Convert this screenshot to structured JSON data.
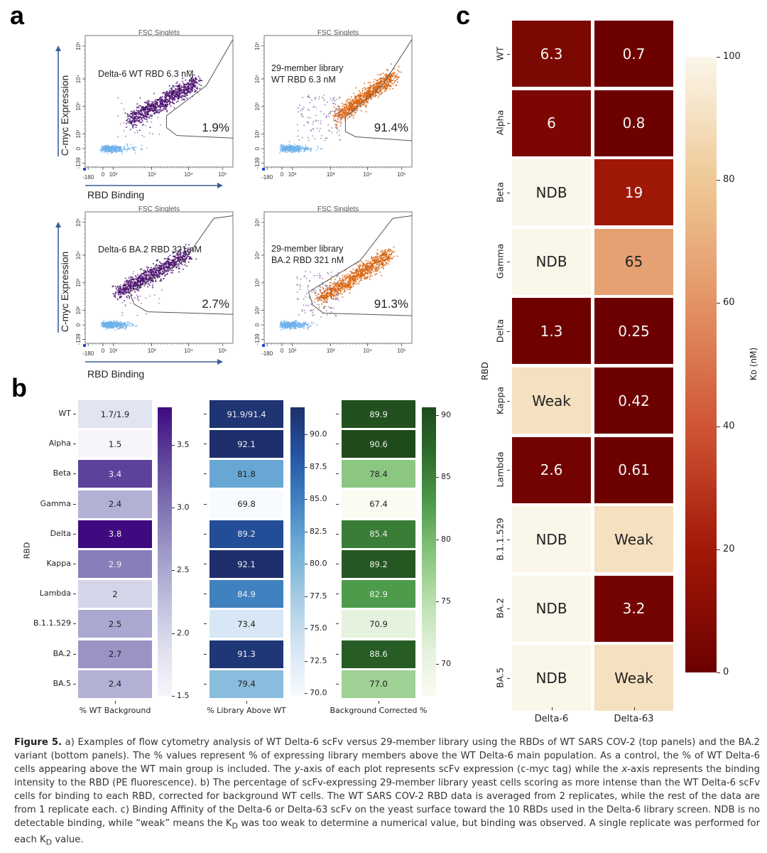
{
  "panels": {
    "a": "a",
    "b": "b",
    "c": "c"
  },
  "panel_a": {
    "plots": [
      {
        "title": "FSC Singlets",
        "label_lines": [
          "Delta-6 WT RBD 6.3 nM"
        ],
        "percent": "1.9%",
        "population": "wt"
      },
      {
        "title": "FSC Singlets",
        "label_lines": [
          "29-member library",
          "WT RBD 6.3 nM"
        ],
        "percent": "91.4%",
        "population": "library"
      },
      {
        "title": "FSC Singlets",
        "label_lines": [
          "Delta-6 BA.2 RBD 321 nM"
        ],
        "percent": "2.7%",
        "population": "wt"
      },
      {
        "title": "FSC Singlets",
        "label_lines": [
          "29-member library",
          "BA.2 RBD 321 nM"
        ],
        "percent": "91.3%",
        "population": "library"
      }
    ],
    "y_axis_label": "C-myc Expression",
    "x_axis_label": "RBD Binding",
    "y_ticks": [
      "-139",
      "0",
      "10²",
      "10³",
      "10⁴",
      "10⁵"
    ],
    "x_ticks": [
      "-180",
      "0",
      "10²",
      "10³",
      "10⁴",
      "10⁵"
    ],
    "colors": {
      "wt_main": "#4b0f6e",
      "library_main": "#d9640f",
      "negative": "#6fb1ea",
      "axis_arrow": "#3a5f9a",
      "gate": "#555555"
    }
  },
  "chart_data": [
    {
      "type": "heatmap",
      "title": "% WT Background",
      "ylabel": "RBD",
      "categories": [
        "WT",
        "Alpha",
        "Beta",
        "Gamma",
        "Delta",
        "Kappa",
        "Lambda",
        "B.1.1.529",
        "BA.2",
        "BA.5"
      ],
      "values": [
        1.8,
        1.5,
        3.4,
        2.4,
        3.8,
        2.9,
        2.0,
        2.5,
        2.7,
        2.4
      ],
      "labels": [
        "1.7/1.9",
        "1.5",
        "3.4",
        "2.4",
        "3.8",
        "2.9",
        "2",
        "2.5",
        "2.7",
        "2.4"
      ],
      "colorbar": {
        "range": [
          1.5,
          3.8
        ],
        "ticks": [
          1.5,
          2.0,
          2.5,
          3.0,
          3.5
        ],
        "tick_labels": [
          "1.5",
          "2.0",
          "2.5",
          "3.0",
          "3.5"
        ],
        "cmap": "Purples"
      }
    },
    {
      "type": "heatmap",
      "title": "% Library Above WT",
      "categories": [
        "WT",
        "Alpha",
        "Beta",
        "Gamma",
        "Delta",
        "Kappa",
        "Lambda",
        "B.1.1.529",
        "BA.2",
        "BA.5"
      ],
      "values": [
        91.65,
        92.1,
        81.8,
        69.8,
        89.2,
        92.1,
        84.9,
        73.4,
        91.3,
        79.4
      ],
      "labels": [
        "91.9/91.4",
        "92.1",
        "81.8",
        "69.8",
        "89.2",
        "92.1",
        "84.9",
        "73.4",
        "91.3",
        "79.4"
      ],
      "colorbar": {
        "range": [
          69.8,
          92.1
        ],
        "ticks": [
          70.0,
          72.5,
          75.0,
          77.5,
          80.0,
          82.5,
          85.0,
          87.5,
          90.0
        ],
        "tick_labels": [
          "70.0",
          "72.5",
          "75.0",
          "77.5",
          "80.0",
          "82.5",
          "85.0",
          "87.5",
          "90.0"
        ],
        "cmap": "Blues"
      }
    },
    {
      "type": "heatmap",
      "title": "Background Corrected %",
      "categories": [
        "WT",
        "Alpha",
        "Beta",
        "Gamma",
        "Delta",
        "Kappa",
        "Lambda",
        "B.1.1.529",
        "BA.2",
        "BA.5"
      ],
      "values": [
        89.9,
        90.6,
        78.4,
        67.4,
        85.4,
        89.2,
        82.9,
        70.9,
        88.6,
        77.0
      ],
      "labels": [
        "89.9",
        "90.6",
        "78.4",
        "67.4",
        "85.4",
        "89.2",
        "82.9",
        "70.9",
        "88.6",
        "77.0"
      ],
      "colorbar": {
        "range": [
          67.4,
          90.6
        ],
        "ticks": [
          70,
          75,
          80,
          85,
          90
        ],
        "tick_labels": [
          "70",
          "75",
          "80",
          "85",
          "90"
        ],
        "cmap": "Greens"
      }
    },
    {
      "type": "heatmap",
      "title": "",
      "ylabel": "RBD",
      "colorbar_label": "Kᴅ (nM)",
      "x_categories": [
        "Delta-6",
        "Delta-63"
      ],
      "categories": [
        "WT",
        "Alpha",
        "Beta",
        "Gamma",
        "Delta",
        "Kappa",
        "Lambda",
        "B.1.1.529",
        "BA.2",
        "BA.5"
      ],
      "series": [
        {
          "name": "Delta-6",
          "values": [
            6.3,
            6,
            100,
            100,
            1.3,
            90,
            2.6,
            100,
            100,
            100
          ],
          "labels": [
            "6.3",
            "6",
            "NDB",
            "NDB",
            "1.3",
            "Weak",
            "2.6",
            "NDB",
            "NDB",
            "NDB"
          ]
        },
        {
          "name": "Delta-63",
          "values": [
            0.7,
            0.8,
            19,
            65,
            0.25,
            0.42,
            0.61,
            90,
            3.2,
            90
          ],
          "labels": [
            "0.7",
            "0.8",
            "19",
            "65",
            "0.25",
            "0.42",
            "0.61",
            "Weak",
            "3.2",
            "Weak"
          ]
        }
      ],
      "colorbar": {
        "range": [
          0,
          100
        ],
        "ticks": [
          0,
          20,
          40,
          60,
          80,
          100
        ],
        "tick_labels": [
          "0",
          "20",
          "40",
          "60",
          "80",
          "100"
        ],
        "cmap": "OrRd_r"
      }
    }
  ],
  "caption": {
    "figure_label": "Figure 5.",
    "text_a": " a) Examples of flow cytometry analysis of WT Delta-6 scFv versus 29-member library using the RBDs of WT SARS COV-2 (top panels) and the BA.2 variant (bottom panels). The % values represent % of expressing library members above the WT Delta-6 main population. As a control, the % of WT Delta-6 cells appearing above the WT main group is included. The ",
    "y_italic": "y",
    "text_b": "-axis of each plot represents scFv expression (c-myc tag) while the ",
    "x_italic": "x",
    "text_c": "-axis represents the binding intensity to the RBD (PE fluorescence). b) The percentage of scFv-expressing 29-member library yeast cells scoring as more intense than the WT Delta-6 scFv cells for binding to each RBD, corrected for background WT cells. The WT SARS COV-2 RBD data is averaged from 2 replicates, while the rest of the data are from 1 replicate each. c) Binding Affinity of the Delta-6 or Delta-63 scFv on the yeast surface toward the 10 RBDs used in the Delta-6 library screen. NDB is no detectable binding, while “weak” means the K",
    "kd_sub": "D",
    "text_d": " was too weak to determine a numerical value, but binding was observed. A single replicate was performed for each K",
    "text_e": " value."
  }
}
